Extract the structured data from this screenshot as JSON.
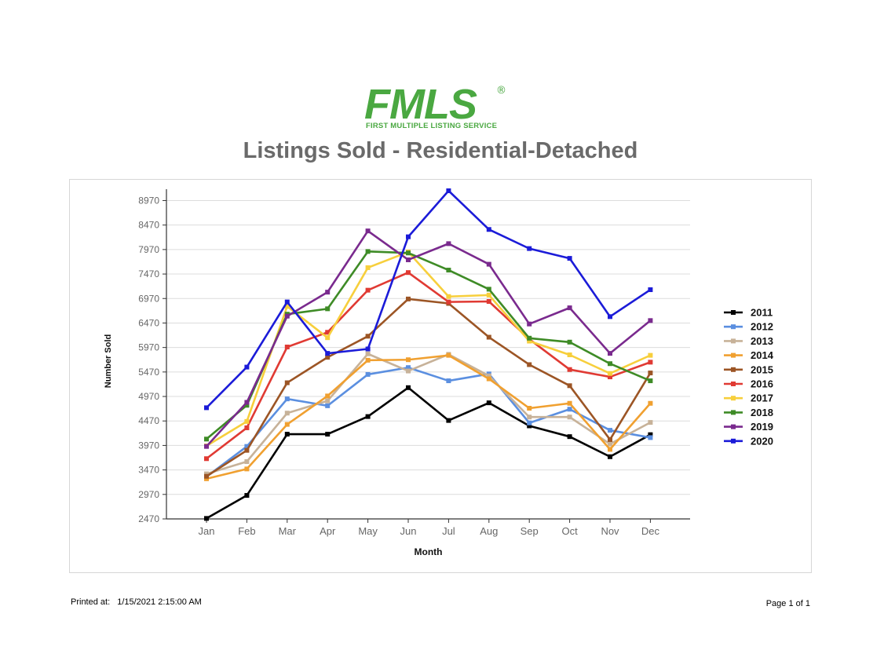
{
  "logo": {
    "word": "FMLS",
    "reg": "®",
    "subtitle": "FIRST MULTIPLE LISTING SERVICE"
  },
  "report": {
    "title": "Listings Sold - Residential-Detached"
  },
  "footer": {
    "printed_label": "Printed at:",
    "printed_value": "1/15/2021 2:15:00 AM",
    "page": "Page 1 of 1"
  },
  "chart_data": {
    "type": "line",
    "title": "Listings Sold - Residential-Detached",
    "xlabel": "Month",
    "ylabel": "Number Sold",
    "ylim": [
      2470,
      9170
    ],
    "yticks": [
      2470,
      2970,
      3470,
      3970,
      4470,
      4970,
      5470,
      5970,
      6470,
      6970,
      7470,
      7970,
      8470,
      8970
    ],
    "categories": [
      "Jan",
      "Feb",
      "Mar",
      "Apr",
      "May",
      "Jun",
      "Jul",
      "Aug",
      "Sep",
      "Oct",
      "Nov",
      "Dec"
    ],
    "grid": true,
    "legend": "right",
    "series": [
      {
        "name": "2011",
        "color": "#000000",
        "values": [
          2480,
          2950,
          4200,
          4200,
          4560,
          5150,
          4480,
          4840,
          4370,
          4150,
          3740,
          4190
        ]
      },
      {
        "name": "2012",
        "color": "#5b8fe0",
        "values": [
          3330,
          3950,
          4920,
          4780,
          5420,
          5560,
          5290,
          5430,
          4430,
          4710,
          4280,
          4130
        ]
      },
      {
        "name": "2013",
        "color": "#c7b299",
        "values": [
          3390,
          3640,
          4630,
          4880,
          5840,
          5490,
          5830,
          5390,
          4550,
          4550,
          4000,
          4440
        ]
      },
      {
        "name": "2014",
        "color": "#f0a030",
        "values": [
          3290,
          3490,
          4400,
          4980,
          5710,
          5720,
          5810,
          5330,
          4730,
          4830,
          3890,
          4830
        ]
      },
      {
        "name": "2015",
        "color": "#9c5525",
        "values": [
          3340,
          3870,
          5250,
          5770,
          6200,
          6960,
          6870,
          6180,
          5620,
          5190,
          4090,
          5450
        ]
      },
      {
        "name": "2016",
        "color": "#e03a33",
        "values": [
          3700,
          4330,
          5980,
          6280,
          7140,
          7500,
          6900,
          6910,
          6140,
          5520,
          5370,
          5670
        ]
      },
      {
        "name": "2017",
        "color": "#f7cf3c",
        "values": [
          3960,
          4460,
          6810,
          6170,
          7600,
          7920,
          7010,
          7040,
          6100,
          5820,
          5440,
          5810
        ]
      },
      {
        "name": "2018",
        "color": "#3e8b26",
        "values": [
          4100,
          4790,
          6650,
          6760,
          7930,
          7900,
          7550,
          7160,
          6160,
          6080,
          5640,
          5290
        ]
      },
      {
        "name": "2019",
        "color": "#7a2a8e",
        "values": [
          3950,
          4850,
          6610,
          7100,
          8350,
          7760,
          8090,
          7670,
          6450,
          6780,
          5850,
          6520
        ]
      },
      {
        "name": "2020",
        "color": "#1b1bd8",
        "values": [
          4740,
          5570,
          6900,
          5850,
          5940,
          8230,
          9170,
          8380,
          7990,
          7790,
          6600,
          7150
        ]
      }
    ]
  }
}
